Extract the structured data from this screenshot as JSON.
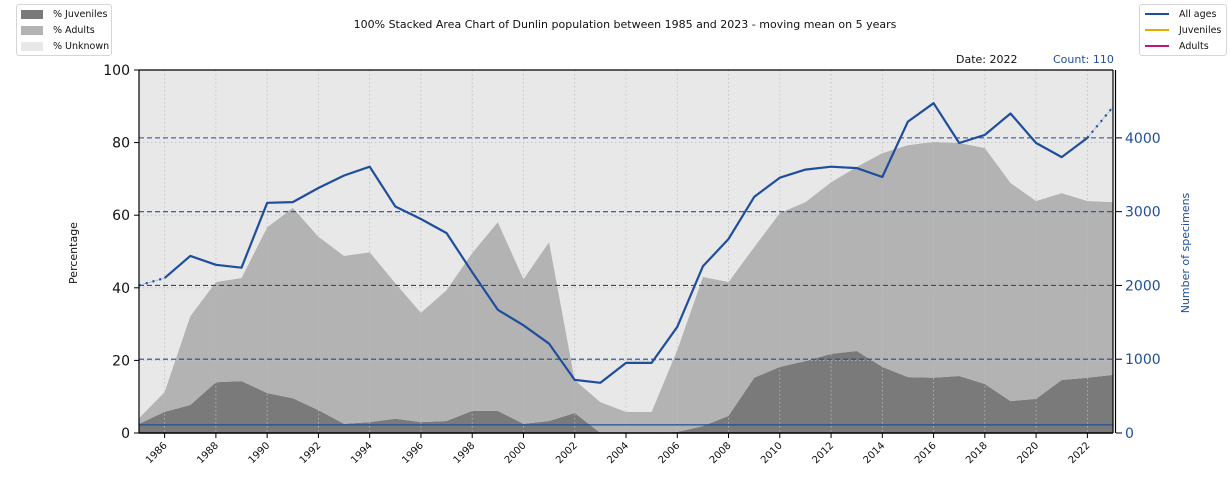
{
  "chart_data": {
    "type": "area",
    "title": "100% Stacked Area Chart of Dunlin population between 1985 and 2023 - moving mean on 5 years",
    "ylabel": "Percentage",
    "y2label": "Number of specimens",
    "xlabel": "",
    "xlim": [
      1985,
      2023
    ],
    "ylim": [
      0,
      100
    ],
    "y2lim": [
      0,
      4920
    ],
    "yticks": [
      "0",
      "20",
      "40",
      "60",
      "80",
      "100"
    ],
    "y2ticks": [
      "0",
      "1000",
      "2000",
      "3000",
      "4000"
    ],
    "xticks": [
      "1986",
      "1988",
      "1990",
      "1992",
      "1994",
      "1996",
      "1998",
      "2000",
      "2002",
      "2004",
      "2006",
      "2008",
      "2010",
      "2012",
      "2014",
      "2016",
      "2018",
      "2020",
      "2022"
    ],
    "grid": true,
    "x": [
      1985,
      1986,
      1987,
      1988,
      1989,
      1990,
      1991,
      1992,
      1993,
      1994,
      1995,
      1996,
      1997,
      1998,
      1999,
      2000,
      2001,
      2002,
      2003,
      2004,
      2005,
      2006,
      2007,
      2008,
      2009,
      2010,
      2011,
      2012,
      2013,
      2014,
      2015,
      2016,
      2017,
      2018,
      2019,
      2020,
      2021,
      2022,
      2023
    ],
    "series": [
      {
        "name": "% Juveniles",
        "color": "#7a7a7a",
        "values": [
          2.5,
          5.8,
          7.7,
          14.0,
          14.3,
          11.0,
          9.6,
          6.3,
          2.5,
          3.0,
          3.9,
          3.0,
          3.3,
          6.1,
          6.1,
          2.5,
          3.3,
          5.5,
          0,
          0,
          0,
          0.3,
          1.9,
          4.7,
          15.2,
          18.2,
          19.8,
          21.8,
          22.6,
          18.2,
          15.4,
          15.2,
          15.7,
          13.5,
          8.8,
          9.4,
          14.6,
          15.2,
          16.0
        ]
      },
      {
        "name": "% Adults",
        "color": "#b3b3b3",
        "values": [
          1.6,
          5.5,
          24.5,
          27.6,
          28.4,
          45.7,
          52.4,
          47.8,
          46.3,
          46.8,
          37.4,
          30.1,
          36.1,
          43.5,
          52.0,
          39.9,
          49.3,
          9.1,
          8.5,
          5.8,
          5.8,
          22.6,
          41.1,
          36.9,
          36.0,
          42.4,
          43.8,
          47.3,
          50.7,
          58.9,
          63.9,
          65.0,
          64.2,
          65.0,
          60.1,
          54.5,
          51.5,
          48.7,
          47.6
        ]
      },
      {
        "name": "% Unknown",
        "color": "#e8e8e8",
        "values": [
          95.9,
          88.7,
          67.8,
          58.4,
          57.3,
          43.3,
          38.0,
          45.9,
          51.2,
          50.2,
          58.7,
          66.9,
          60.6,
          50.4,
          41.9,
          57.6,
          47.4,
          85.4,
          91.5,
          94.2,
          94.2,
          77.1,
          57.0,
          58.4,
          48.8,
          39.4,
          36.4,
          30.9,
          26.7,
          22.9,
          20.7,
          19.8,
          20.1,
          21.5,
          31.1,
          36.1,
          33.9,
          36.1,
          36.4
        ]
      }
    ],
    "lines": [
      {
        "name": "All ages",
        "color": "#1f4e9c",
        "axis": "right",
        "values": [
          2000,
          2100,
          2400,
          2280,
          2240,
          3120,
          3130,
          3320,
          3490,
          3610,
          3070,
          2900,
          2710,
          2180,
          1670,
          1460,
          1210,
          720,
          680,
          950,
          950,
          1440,
          2260,
          2630,
          3200,
          3460,
          3570,
          3610,
          3590,
          3470,
          4220,
          4470,
          3930,
          4040,
          4330,
          3930,
          3740,
          4000,
          4420
        ],
        "dotted_segments": [
          "1985-1986",
          "2022-2023"
        ]
      },
      {
        "name": "Juveniles",
        "color": "#e0b000",
        "axis": "right",
        "values": []
      },
      {
        "name": "Adults",
        "color": "#c0167a",
        "axis": "right",
        "values": []
      }
    ],
    "hlines_right": [
      1000,
      2000,
      3000,
      4000
    ],
    "reference_count": 110,
    "legend_left": [
      "% Juveniles",
      "% Adults",
      "% Unknown"
    ],
    "legend_right": [
      "All ages",
      "Juveniles",
      "Adults"
    ],
    "legend_left_placement": "top-left",
    "legend_right_placement": "top-right",
    "annotations": {
      "date": "Date: 2022",
      "count": "Count: 110"
    }
  }
}
